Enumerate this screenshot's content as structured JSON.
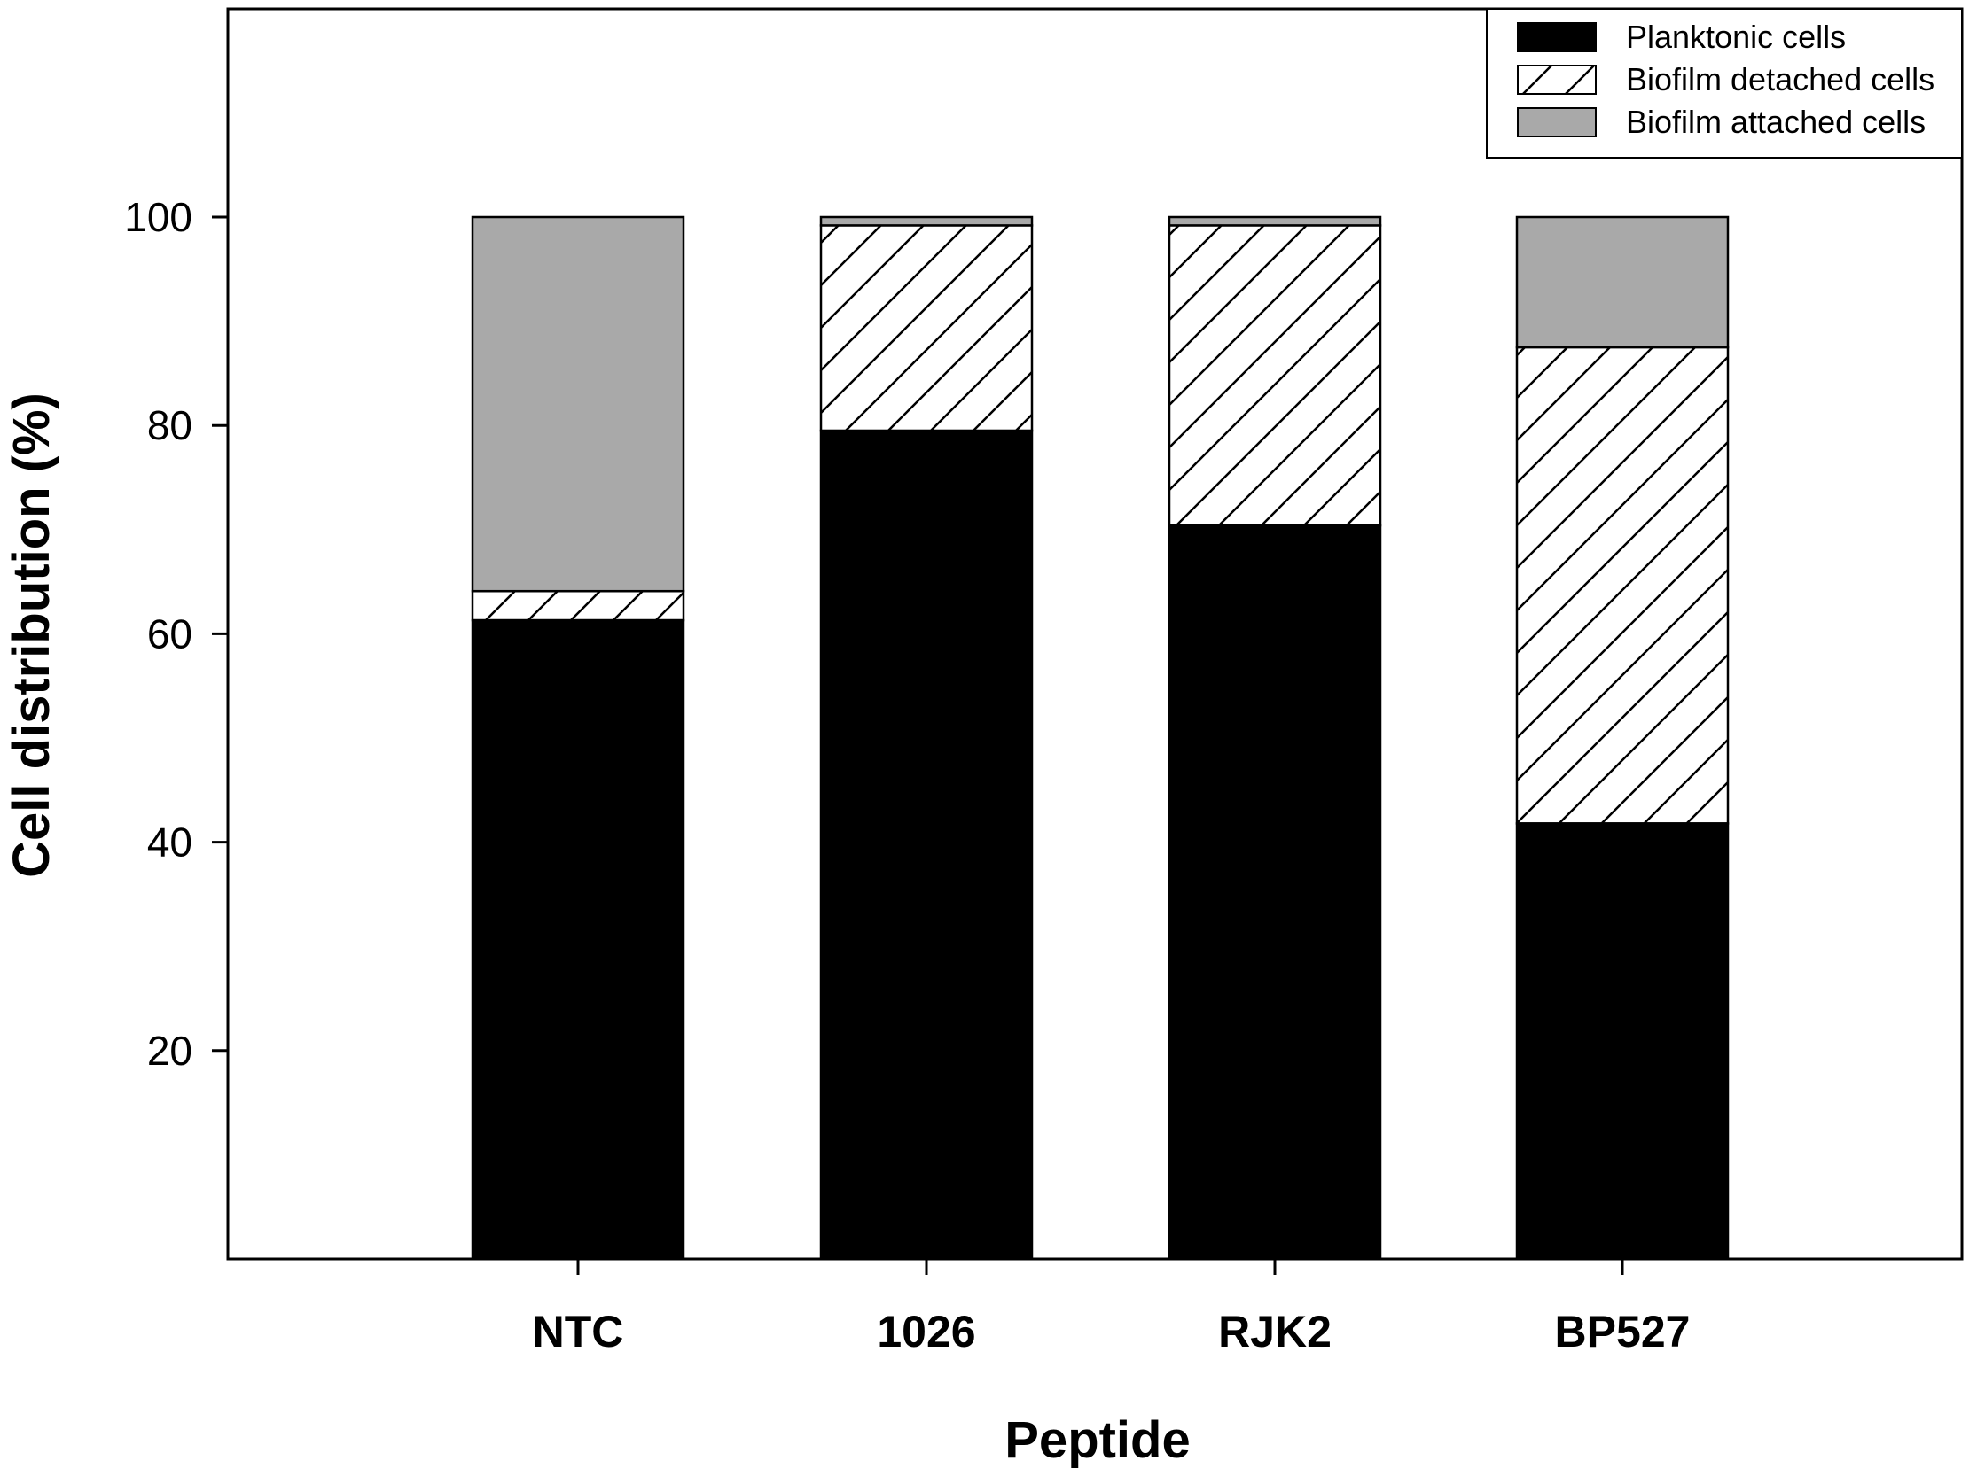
{
  "chart_data": {
    "type": "bar",
    "stacked": true,
    "categories": [
      "NTC",
      "1026",
      "RJK2",
      "BP527"
    ],
    "series": [
      {
        "name": "Planktonic cells",
        "values": [
          61.3,
          79.5,
          70.4,
          41.8
        ],
        "color": "#000000",
        "pattern": "solid"
      },
      {
        "name": "Biofilm detached cells",
        "values": [
          2.8,
          19.7,
          28.8,
          45.7
        ],
        "color": "#ffffff",
        "pattern": "diagonal-hatch"
      },
      {
        "name": "Biofilm attached cells",
        "values": [
          35.9,
          0.8,
          0.8,
          12.5
        ],
        "color": "#a9a9a9",
        "pattern": "solid"
      }
    ],
    "title": "",
    "xlabel": "Peptide",
    "ylabel": "Cell distribution (%)",
    "ylim": [
      0,
      120
    ],
    "yticks": [
      20,
      40,
      60,
      80,
      100
    ],
    "grid": false,
    "legend_position": "top-right"
  }
}
